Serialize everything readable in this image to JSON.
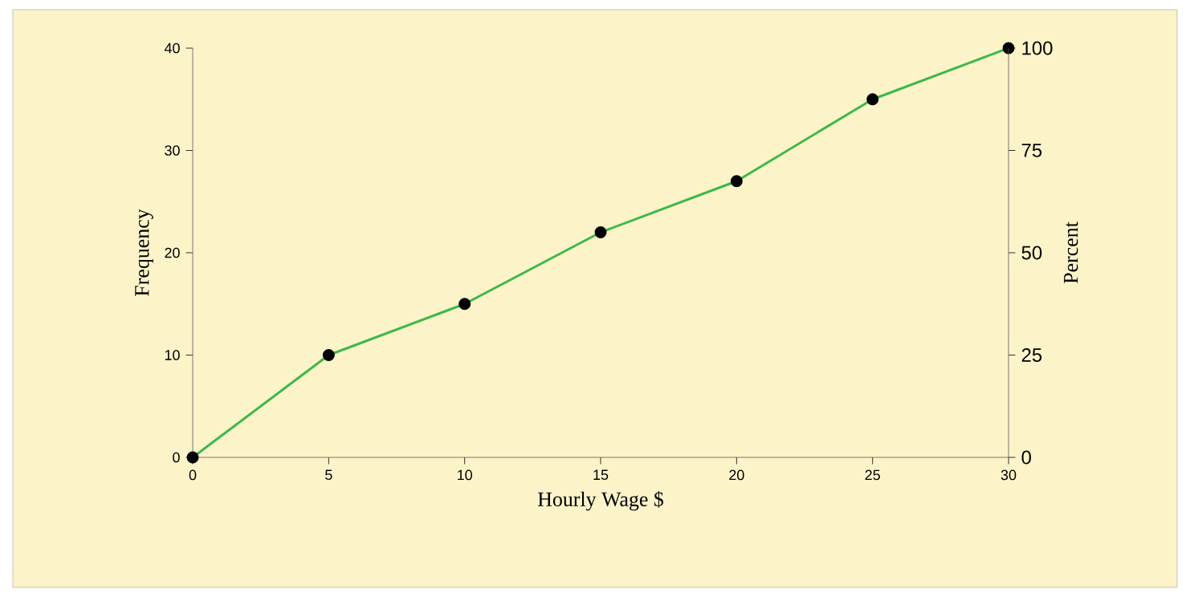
{
  "chart_data": {
    "type": "line",
    "xlabel": "Hourly Wage $",
    "ylabel": "Frequency",
    "y2label": "Percent",
    "x": [
      0,
      5,
      10,
      15,
      20,
      25,
      30
    ],
    "series": [
      {
        "color": "#3cb84a",
        "values": [
          0,
          10,
          15,
          22,
          27,
          35,
          40
        ]
      }
    ],
    "xlim": [
      0,
      30
    ],
    "xticks": [
      0,
      5,
      10,
      15,
      20,
      25,
      30
    ],
    "ylim": [
      0,
      40
    ],
    "yticks": [
      0,
      10,
      20,
      30,
      40
    ],
    "y2lim": [
      0,
      100
    ],
    "y2ticks": [
      0,
      25,
      50,
      75,
      100
    ],
    "marker": "circle",
    "line_style": "solid",
    "grid": false
  }
}
